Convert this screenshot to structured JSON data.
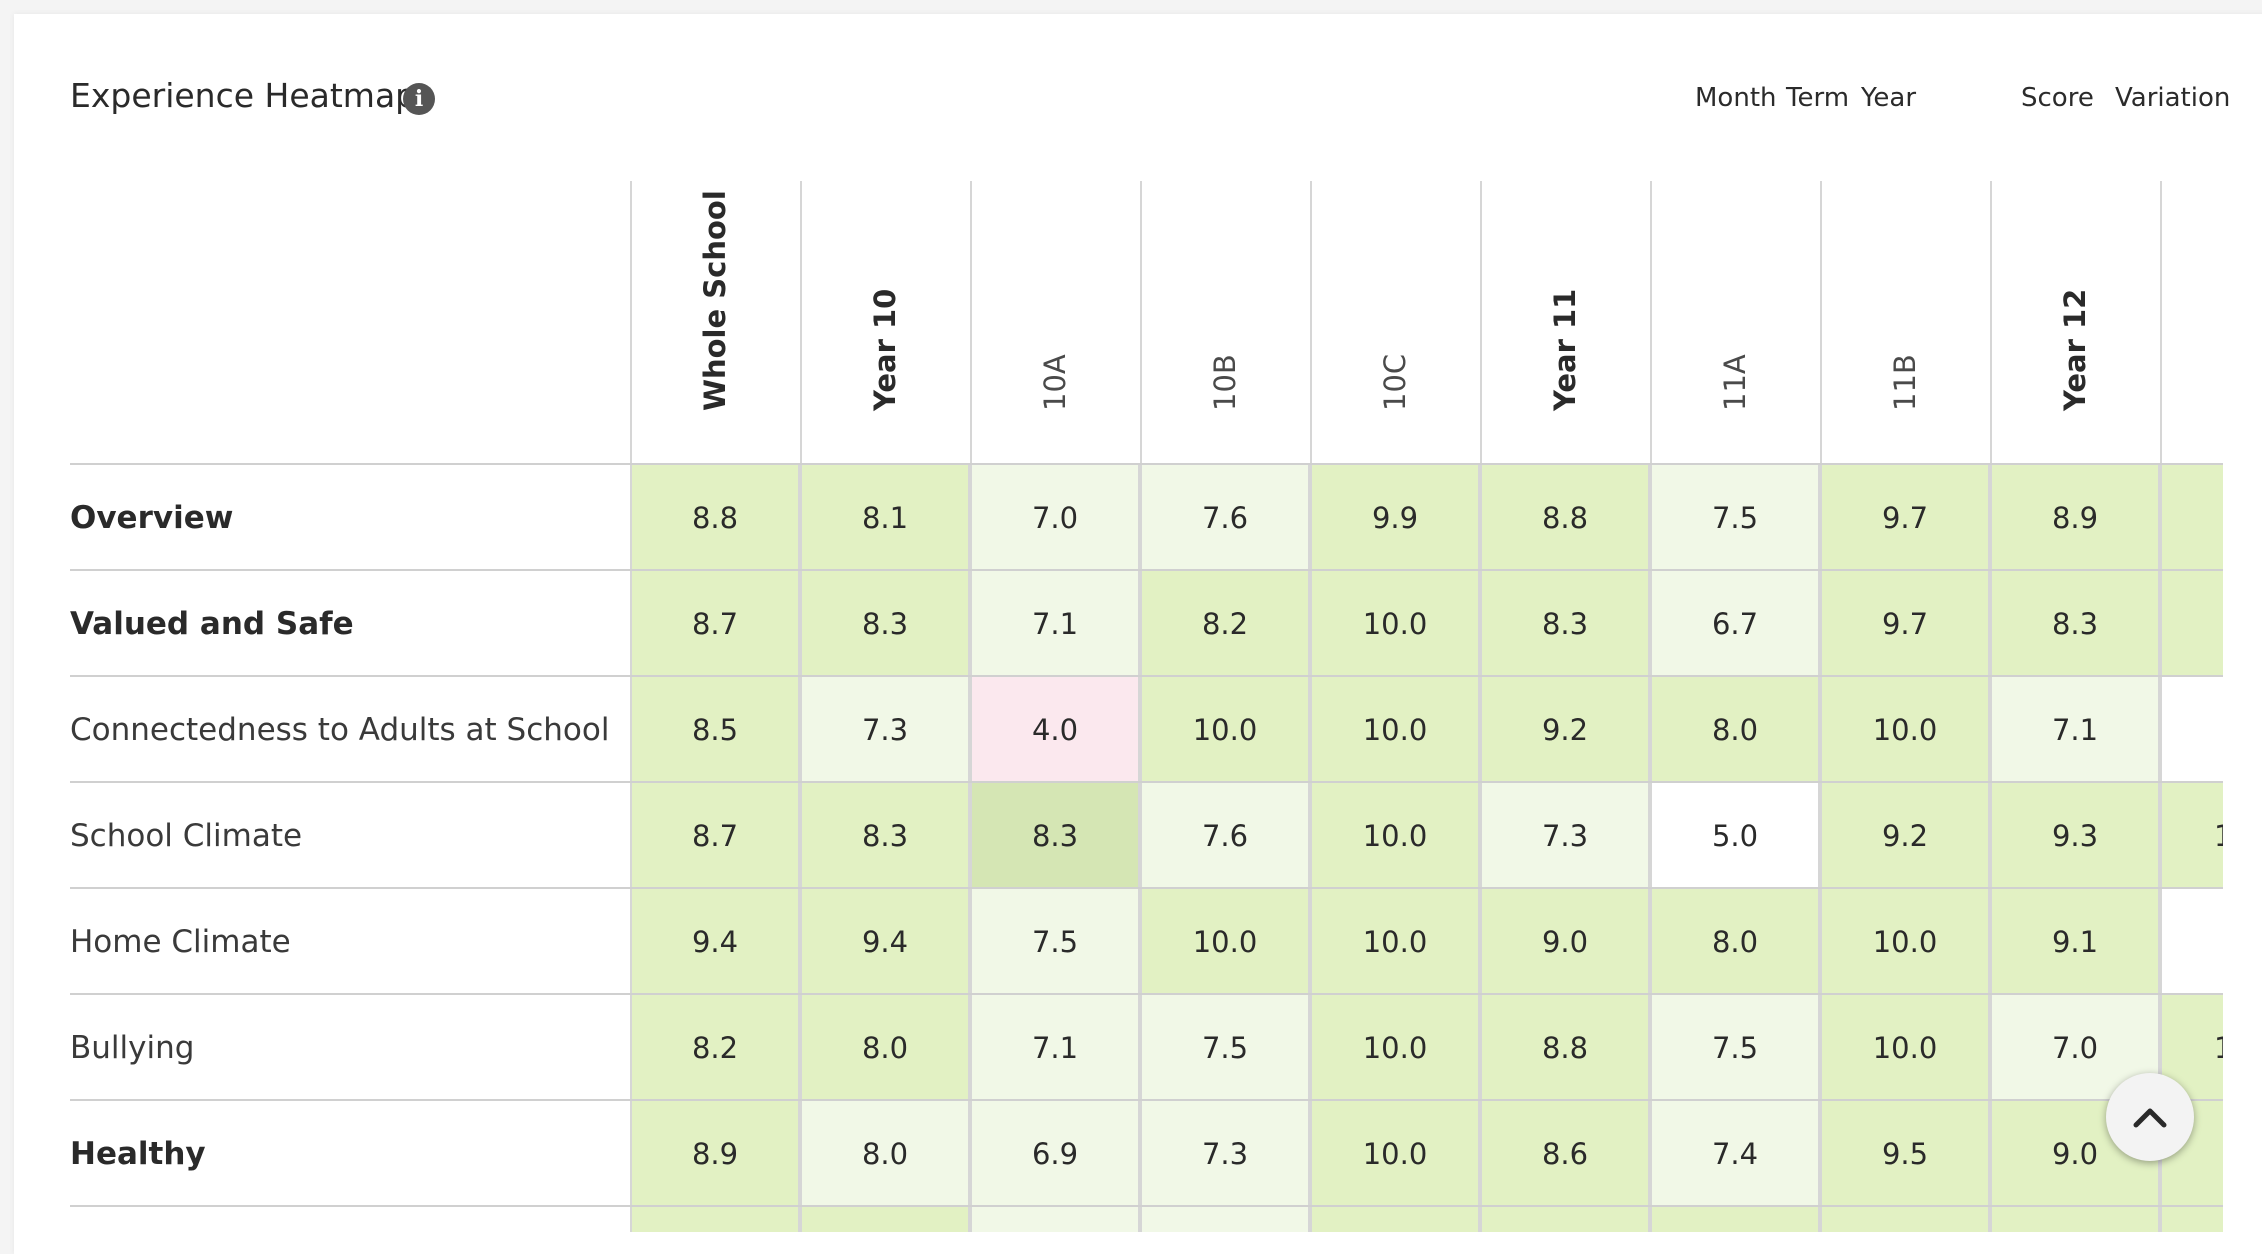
{
  "header": {
    "title": "Experience Heatmap",
    "info_icon": "info-icon",
    "period_toggles": [
      "Month",
      "Term",
      "Year"
    ],
    "active_period": "Month",
    "mode_toggles": [
      "Score",
      "Variation"
    ],
    "active_mode": "Score"
  },
  "columns": [
    {
      "label": "Whole School",
      "kind": "group"
    },
    {
      "label": "Year 10",
      "kind": "group"
    },
    {
      "label": "10A",
      "kind": "sub"
    },
    {
      "label": "10B",
      "kind": "sub"
    },
    {
      "label": "10C",
      "kind": "sub"
    },
    {
      "label": "Year 11",
      "kind": "group"
    },
    {
      "label": "11A",
      "kind": "sub"
    },
    {
      "label": "11B",
      "kind": "sub"
    },
    {
      "label": "Year 12",
      "kind": "group"
    }
  ],
  "rows": [
    {
      "label": "Overview",
      "kind": "bold",
      "values": [
        "8.8",
        "8.1",
        "7.0",
        "7.6",
        "9.9",
        "8.8",
        "7.5",
        "9.7",
        "8.9"
      ]
    },
    {
      "label": "Valued and Safe",
      "kind": "bold",
      "values": [
        "8.7",
        "8.3",
        "7.1",
        "8.2",
        "10.0",
        "8.3",
        "6.7",
        "9.7",
        "8.3"
      ]
    },
    {
      "label": "Connectedness to Adults at School",
      "kind": "normal",
      "values": [
        "8.5",
        "7.3",
        "4.0",
        "10.0",
        "10.0",
        "9.2",
        "8.0",
        "10.0",
        "7.1"
      ]
    },
    {
      "label": "School Climate",
      "kind": "normal",
      "values": [
        "8.7",
        "8.3",
        "8.3",
        "7.6",
        "10.0",
        "7.3",
        "5.0",
        "9.2",
        "9.3"
      ]
    },
    {
      "label": "Home Climate",
      "kind": "normal",
      "values": [
        "9.4",
        "9.4",
        "7.5",
        "10.0",
        "10.0",
        "9.0",
        "8.0",
        "10.0",
        "9.1"
      ]
    },
    {
      "label": "Bullying",
      "kind": "normal",
      "values": [
        "8.2",
        "8.0",
        "7.1",
        "7.5",
        "10.0",
        "8.8",
        "7.5",
        "10.0",
        "7.0"
      ]
    },
    {
      "label": "Healthy",
      "kind": "bold",
      "values": [
        "8.9",
        "8.0",
        "6.9",
        "7.3",
        "10.0",
        "8.6",
        "7.4",
        "9.5",
        "9.0"
      ]
    }
  ],
  "cut_off_column_partial": [
    "",
    "",
    "",
    "1",
    "",
    "1",
    ""
  ],
  "colors": {
    "strong_green": "#e2f1c3",
    "light_green": "#f1f8e7",
    "highlight_green": "#d5e6b4",
    "pink": "#fbe8ee",
    "white": "#ffffff",
    "accent": "#3f3aa6"
  },
  "cell_shades": [
    [
      "strong_green",
      "strong_green",
      "light_green",
      "light_green",
      "strong_green",
      "strong_green",
      "light_green",
      "strong_green",
      "strong_green",
      "strong_green"
    ],
    [
      "strong_green",
      "strong_green",
      "light_green",
      "strong_green",
      "strong_green",
      "strong_green",
      "light_green",
      "strong_green",
      "strong_green",
      "strong_green"
    ],
    [
      "strong_green",
      "light_green",
      "pink",
      "strong_green",
      "strong_green",
      "strong_green",
      "strong_green",
      "strong_green",
      "light_green",
      "white"
    ],
    [
      "strong_green",
      "strong_green",
      "highlight_green",
      "light_green",
      "strong_green",
      "light_green",
      "white",
      "strong_green",
      "strong_green",
      "strong_green"
    ],
    [
      "strong_green",
      "strong_green",
      "light_green",
      "strong_green",
      "strong_green",
      "strong_green",
      "strong_green",
      "strong_green",
      "strong_green",
      "white"
    ],
    [
      "strong_green",
      "strong_green",
      "light_green",
      "light_green",
      "strong_green",
      "strong_green",
      "light_green",
      "strong_green",
      "light_green",
      "strong_green"
    ],
    [
      "strong_green",
      "light_green",
      "light_green",
      "light_green",
      "strong_green",
      "strong_green",
      "light_green",
      "strong_green",
      "strong_green",
      "strong_green"
    ]
  ],
  "scroll_top_icon": "chevron-up-icon"
}
